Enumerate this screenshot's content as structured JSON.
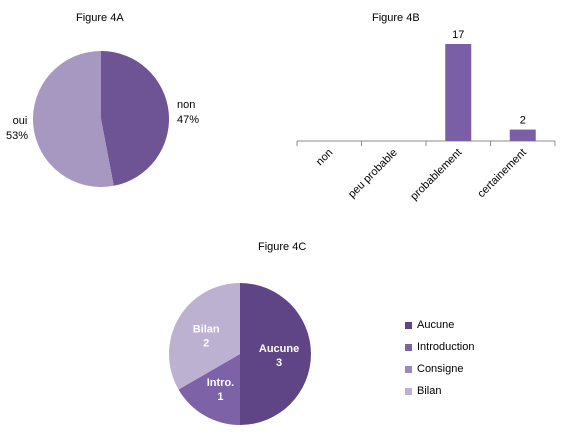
{
  "colors": {
    "pie_a_non": "#6e5494",
    "pie_a_oui": "#a698c0",
    "bar": "#7b5fa6",
    "pie_c_aucune": "#5f4585",
    "pie_c_intro": "#7d62a8",
    "pie_c_consigne": "#9c88bc",
    "pie_c_bilan": "#bcb1d1"
  },
  "chart_data": [
    {
      "type": "pie",
      "title": "Figure 4A",
      "slices": [
        {
          "label": "non",
          "value": 47,
          "value_label": "47%"
        },
        {
          "label": "oui",
          "value": 53,
          "value_label": "53%"
        }
      ]
    },
    {
      "type": "bar",
      "title": "Figure 4B",
      "categories": [
        "non",
        "peu probable",
        "probablement",
        "certainement"
      ],
      "values": [
        0,
        0,
        17,
        2
      ],
      "data_labels": [
        "",
        "",
        "17",
        "2"
      ],
      "ylim": [
        0,
        17
      ]
    },
    {
      "type": "pie",
      "title": "Figure 4C",
      "legend_position": "right",
      "legend": [
        "Aucune",
        "Introduction",
        "Consigne",
        "Bilan"
      ],
      "slices": [
        {
          "label": "Aucune",
          "value": 3,
          "value_label": "3"
        },
        {
          "label": "Intro.",
          "value": 1,
          "value_label": "1"
        },
        {
          "label": "Consigne",
          "value": 0,
          "value_label": ""
        },
        {
          "label": "Bilan",
          "value": 2,
          "value_label": "2"
        }
      ]
    }
  ]
}
